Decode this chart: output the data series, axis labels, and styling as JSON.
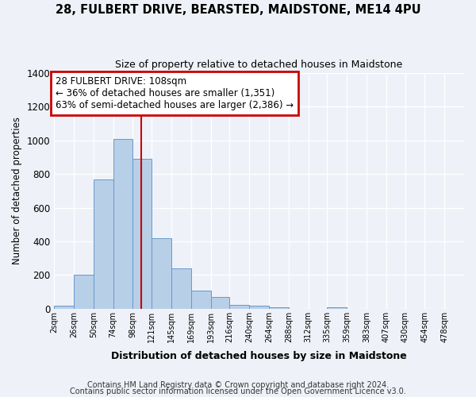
{
  "title": "28, FULBERT DRIVE, BEARSTED, MAIDSTONE, ME14 4PU",
  "subtitle": "Size of property relative to detached houses in Maidstone",
  "xlabel": "Distribution of detached houses by size in Maidstone",
  "ylabel": "Number of detached properties",
  "footer1": "Contains HM Land Registry data © Crown copyright and database right 2024.",
  "footer2": "Contains public sector information licensed under the Open Government Licence v3.0.",
  "bar_color": "#b8cfe8",
  "bar_edge_color": "#6699cc",
  "background_color": "#eef2f8",
  "annotation_line1": "28 FULBERT DRIVE: 108sqm",
  "annotation_line2": "← 36% of detached houses are smaller (1,351)",
  "annotation_line3": "63% of semi-detached houses are larger (2,386) →",
  "annotation_box_color": "#ffffff",
  "annotation_edge_color": "#cc0000",
  "vline_x": 108,
  "vline_color": "#cc0000",
  "categories": [
    "2sqm",
    "26sqm",
    "50sqm",
    "74sqm",
    "98sqm",
    "121sqm",
    "145sqm",
    "169sqm",
    "193sqm",
    "216sqm",
    "240sqm",
    "264sqm",
    "288sqm",
    "312sqm",
    "335sqm",
    "359sqm",
    "383sqm",
    "407sqm",
    "430sqm",
    "454sqm",
    "478sqm"
  ],
  "bin_edges": [
    2,
    26,
    50,
    74,
    98,
    121,
    145,
    169,
    193,
    216,
    240,
    264,
    288,
    312,
    335,
    359,
    383,
    407,
    430,
    454,
    478,
    502
  ],
  "values": [
    20,
    200,
    770,
    1010,
    890,
    420,
    240,
    108,
    68,
    25,
    20,
    10,
    0,
    0,
    10,
    0,
    0,
    0,
    0,
    0,
    0
  ],
  "ylim": [
    0,
    1400
  ],
  "yticks": [
    0,
    200,
    400,
    600,
    800,
    1000,
    1200,
    1400
  ],
  "xlim": [
    2,
    502
  ]
}
